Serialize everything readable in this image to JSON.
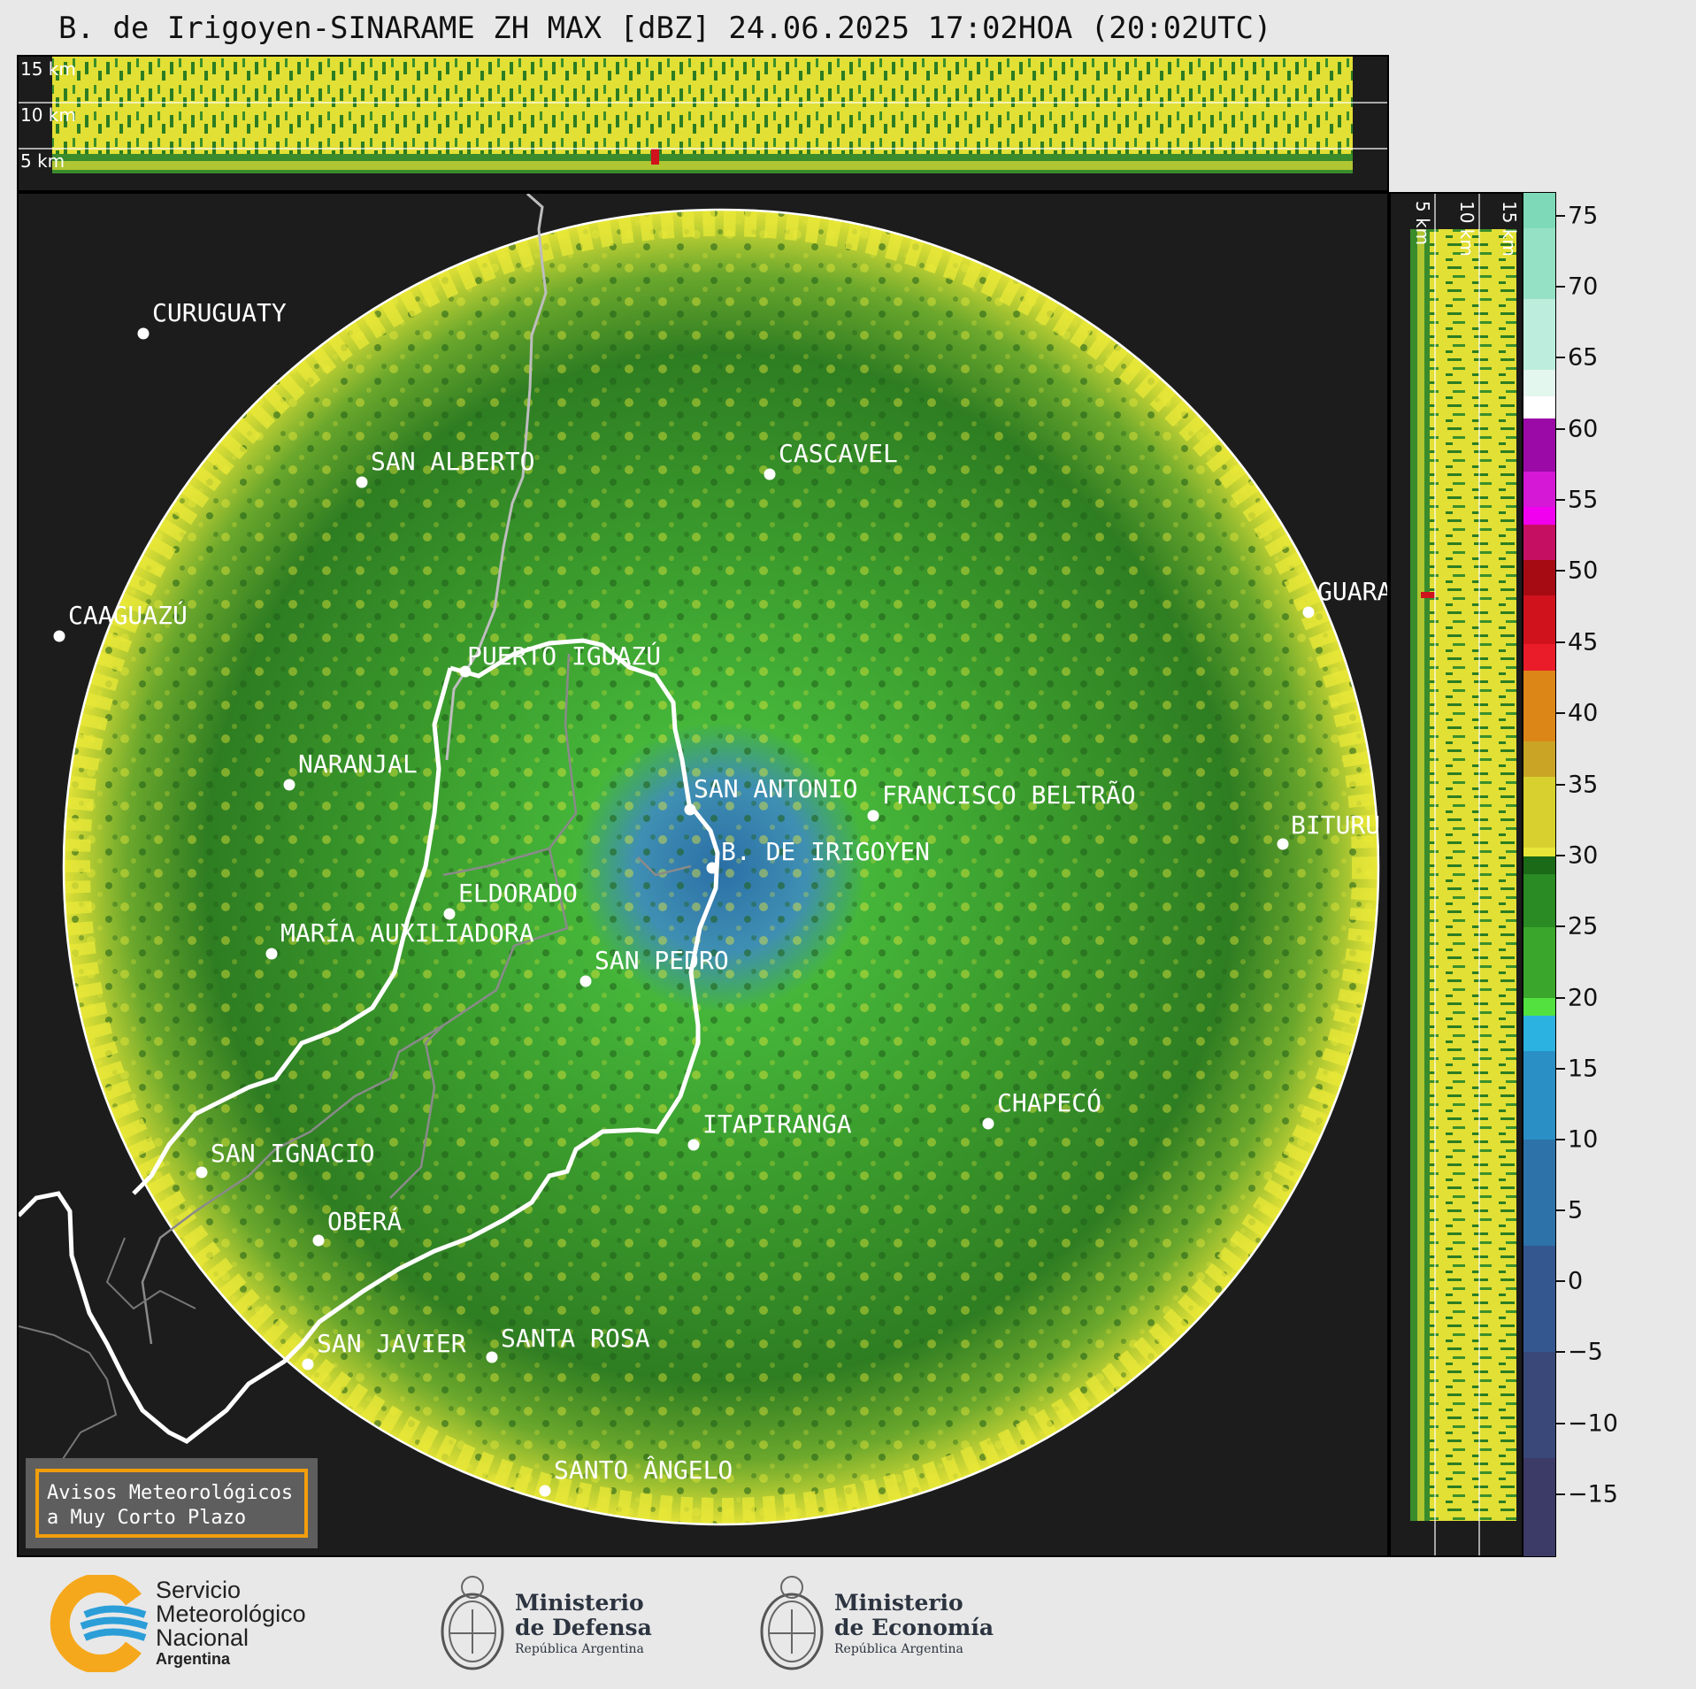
{
  "title": "B. de Irigoyen-SINARAME ZH MAX [dBZ] 24.06.2025 17:02HOA (20:02UTC)",
  "top_panel": {
    "altitude_labels": [
      "15 km",
      "10 km",
      "5 km"
    ]
  },
  "side_panel": {
    "altitude_labels": [
      "5 km",
      "10 km",
      "15 km"
    ]
  },
  "colorbar": {
    "ticks": [
      "75",
      "70",
      "65",
      "60",
      "55",
      "50",
      "45",
      "40",
      "35",
      "30",
      "25",
      "20",
      "15",
      "10",
      "5",
      "0",
      "−5",
      "−10",
      "−15"
    ],
    "range_dbz": [
      -19,
      77
    ]
  },
  "cities": [
    {
      "name": "CURUGUATY"
    },
    {
      "name": "SAN ALBERTO"
    },
    {
      "name": "CASCAVEL"
    },
    {
      "name": "CAAGUAZÚ"
    },
    {
      "name": "GUARA"
    },
    {
      "name": "PUERTO IGUAZÚ"
    },
    {
      "name": "NARANJAL"
    },
    {
      "name": "SAN ANTONIO"
    },
    {
      "name": "FRANCISCO BELTRÃO"
    },
    {
      "name": "BITURU"
    },
    {
      "name": "B. DE IRIGOYEN"
    },
    {
      "name": "ELDORADO"
    },
    {
      "name": "MARÍA AUXILIADORA"
    },
    {
      "name": "SAN PEDRO"
    },
    {
      "name": "CHAPECÓ"
    },
    {
      "name": "ITAPIRANGA"
    },
    {
      "name": "SAN IGNACIO"
    },
    {
      "name": "OBERÁ"
    },
    {
      "name": "SAN JAVIER"
    },
    {
      "name": "SANTA ROSA"
    },
    {
      "name": "SANTO ÂNGELO"
    }
  ],
  "notice": {
    "line1": "Avisos Meteorológicos",
    "line2": "a Muy Corto Plazo"
  },
  "logos": {
    "smn": {
      "line1": "Servicio",
      "line2": "Meteorológico",
      "line3": "Nacional",
      "line4": "Argentina"
    },
    "defensa": {
      "line1": "Ministerio",
      "line2": "de Defensa",
      "line3": "República Argentina"
    },
    "economia": {
      "line1": "Ministerio",
      "line2": "de Economía",
      "line3": "República Argentina"
    }
  },
  "colors": {
    "background": "#1c1c1c",
    "yellow_echo": "#e9e838",
    "green_echo": "#3a9a2a",
    "dark_green_echo": "#27701d",
    "blue_echo": "#2f7fb3",
    "notice_border": "#f29e0c",
    "smn_orange": "#f6a81c",
    "smn_blue": "#2b9ed8"
  }
}
